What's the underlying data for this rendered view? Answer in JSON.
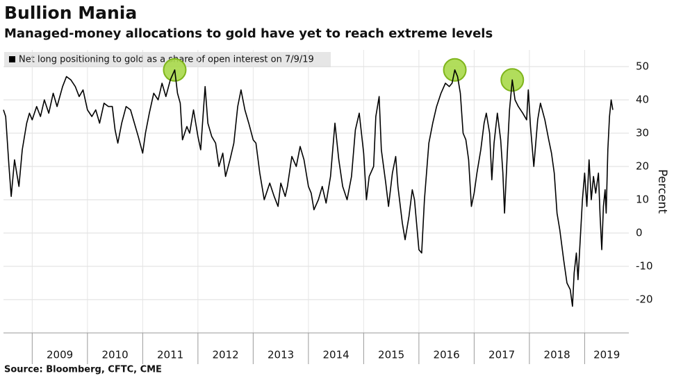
{
  "chart_data": {
    "type": "line",
    "title": "Bullion Mania",
    "subtitle": "Managed-money allocations to gold have yet to reach extreme levels",
    "y_label": "Percent",
    "source": "Source: Bloomberg, CFTC, CME",
    "xlim": [
      2008.48,
      2019.8
    ],
    "xticks": [
      2009,
      2010,
      2011,
      2012,
      2013,
      2014,
      2015,
      2016,
      2017,
      2018,
      2019
    ],
    "ylim": [
      -30,
      55
    ],
    "yticks": [
      -20,
      -10,
      0,
      10,
      20,
      30,
      40,
      50
    ],
    "grid": true,
    "highlight_color": "#a8d94a",
    "x": [
      2008.48,
      2008.52,
      2008.58,
      2008.62,
      2008.68,
      2008.72,
      2008.76,
      2008.82,
      2008.9,
      2008.95,
      2009.0,
      2009.08,
      2009.15,
      2009.22,
      2009.3,
      2009.38,
      2009.45,
      2009.55,
      2009.62,
      2009.7,
      2009.78,
      2009.85,
      2009.92,
      2010.0,
      2010.08,
      2010.15,
      2010.22,
      2010.3,
      2010.38,
      2010.45,
      2010.5,
      2010.55,
      2010.62,
      2010.7,
      2010.78,
      2010.85,
      2010.92,
      2011.0,
      2011.05,
      2011.12,
      2011.2,
      2011.28,
      2011.35,
      2011.42,
      2011.5,
      2011.58,
      2011.63,
      2011.68,
      2011.72,
      2011.8,
      2011.85,
      2011.92,
      2012.0,
      2012.05,
      2012.1,
      2012.13,
      2012.18,
      2012.25,
      2012.32,
      2012.38,
      2012.45,
      2012.5,
      2012.58,
      2012.65,
      2012.72,
      2012.78,
      2012.85,
      2012.92,
      2013.0,
      2013.05,
      2013.12,
      2013.2,
      2013.3,
      2013.38,
      2013.45,
      2013.5,
      2013.58,
      2013.62,
      2013.7,
      2013.78,
      2013.85,
      2013.92,
      2014.0,
      2014.05,
      2014.1,
      2014.18,
      2014.25,
      2014.32,
      2014.4,
      2014.48,
      2014.55,
      2014.62,
      2014.7,
      2014.78,
      2014.85,
      2014.92,
      2015.0,
      2015.05,
      2015.1,
      2015.18,
      2015.22,
      2015.28,
      2015.32,
      2015.4,
      2015.45,
      2015.52,
      2015.58,
      2015.62,
      2015.7,
      2015.75,
      2015.82,
      2015.88,
      2015.92,
      2016.0,
      2016.05,
      2016.1,
      2016.18,
      2016.25,
      2016.32,
      2016.4,
      2016.48,
      2016.55,
      2016.6,
      2016.65,
      2016.7,
      2016.75,
      2016.8,
      2016.85,
      2016.9,
      2016.95,
      2017.0,
      2017.05,
      2017.12,
      2017.18,
      2017.22,
      2017.28,
      2017.32,
      2017.36,
      2017.42,
      2017.48,
      2017.52,
      2017.55,
      2017.6,
      2017.64,
      2017.69,
      2017.74,
      2017.8,
      2017.88,
      2017.95,
      2017.98,
      2018.02,
      2018.08,
      2018.15,
      2018.2,
      2018.28,
      2018.35,
      2018.4,
      2018.45,
      2018.5,
      2018.55,
      2018.62,
      2018.68,
      2018.74,
      2018.78,
      2018.81,
      2018.85,
      2018.88,
      2018.92,
      2018.96,
      2019.0,
      2019.04,
      2019.08,
      2019.12,
      2019.16,
      2019.2,
      2019.25,
      2019.28,
      2019.31,
      2019.34,
      2019.37,
      2019.39,
      2019.42,
      2019.45,
      2019.48,
      2019.51
    ],
    "series": [
      {
        "name": "Net long positioning to gold as a share of open interest on 7/9/19",
        "color": "#000000",
        "values": [
          37,
          35,
          20,
          11,
          22,
          18,
          14,
          25,
          33,
          36,
          34,
          38,
          35,
          40,
          36,
          42,
          38,
          44,
          47,
          46,
          44,
          41,
          43,
          37,
          35,
          37,
          33,
          39,
          38,
          38,
          31,
          27,
          33,
          38,
          37,
          33,
          29,
          24,
          30,
          36,
          42,
          40,
          45,
          41,
          46,
          49,
          42,
          39,
          28,
          32,
          30,
          37,
          29,
          25,
          37,
          44,
          33,
          29,
          27,
          20,
          24,
          17,
          22,
          27,
          38,
          43,
          37,
          33,
          28,
          27,
          18,
          10,
          15,
          11,
          8,
          15,
          11,
          14,
          23,
          20,
          26,
          22,
          14,
          12,
          7,
          10,
          14,
          9,
          17,
          33,
          22,
          14,
          10,
          17,
          31,
          36,
          24,
          10,
          17,
          20,
          35,
          41,
          25,
          15,
          8,
          18,
          23,
          14,
          3,
          -2,
          5,
          13,
          10,
          -5,
          -6,
          10,
          27,
          33,
          38,
          42,
          45,
          44,
          45,
          49,
          47,
          42,
          30,
          28,
          22,
          8,
          12,
          18,
          25,
          33,
          36,
          30,
          16,
          27,
          36,
          28,
          18,
          6,
          24,
          37,
          46,
          40,
          38,
          36,
          34,
          43,
          32,
          20,
          34,
          39,
          34,
          28,
          24,
          18,
          6,
          1,
          -8,
          -15,
          -17,
          -22,
          -12,
          -6,
          -14,
          -2,
          10,
          18,
          8,
          22,
          10,
          17,
          12,
          18,
          5,
          -5,
          8,
          13,
          6,
          25,
          35,
          40,
          37
        ]
      }
    ]
  }
}
